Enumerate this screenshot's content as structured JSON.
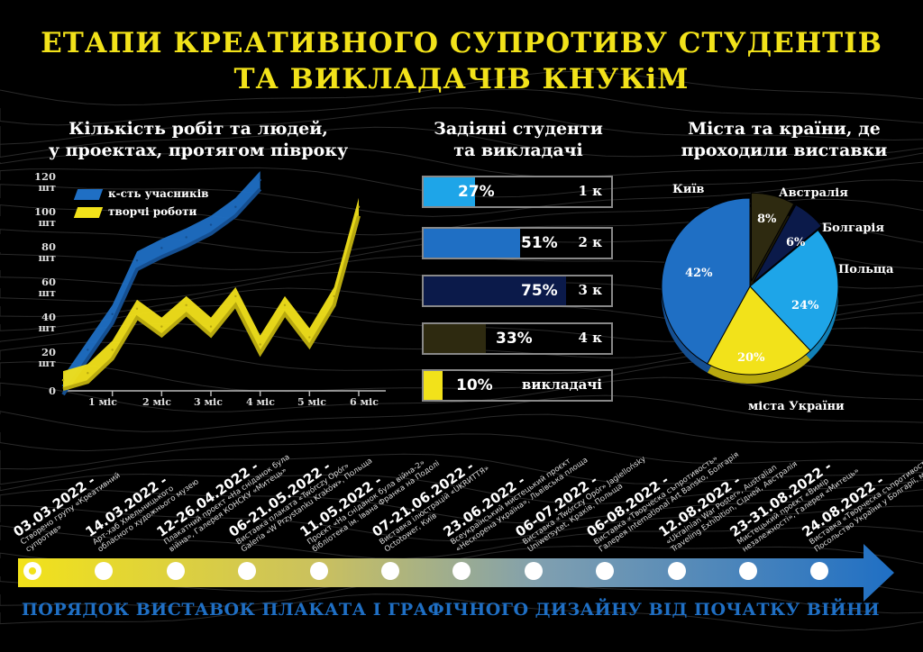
{
  "title_line1": "ЕТАПИ КРЕАТИВНОГО СУПРОТИВУ СТУДЕНТІВ",
  "title_line2": "ТА ВИКЛАДАЧІВ КНУКіМ",
  "line_chart_title": "Кількість робіт та людей, у проектах, протягом півроку",
  "line_chart_title_1": "Кількість робіт та людей,",
  "line_chart_title_2": "у проектах, протягом півроку",
  "bar_chart_title_1": "Задіяні студенти",
  "bar_chart_title_2": "та викладачі",
  "pie_chart_title_1": "Міста та країни, де",
  "pie_chart_title_2": "проходили виставки",
  "colors": {
    "blue": "#1f6fc4",
    "yellow": "#f2e21a",
    "lightblue": "#1ea5e8",
    "navy": "#0b1a4a",
    "olive": "#2e2a10"
  },
  "chart_data": [
    {
      "type": "line",
      "title": "Кількість робіт та людей, у проектах, протягом півроку",
      "y_tick_labels": [
        "120 шт",
        "100 шт",
        "80 шт",
        "60 шт",
        "40 шт",
        "20 шт",
        "0"
      ],
      "x_tick_labels": [
        "1 міс",
        "2 міс",
        "3 міс",
        "4 міс",
        "5 міс",
        "6 міс"
      ],
      "ylim": [
        0,
        120
      ],
      "series": [
        {
          "name": "к-сть учасників",
          "x": [
            0,
            0.5,
            1,
            1.5,
            2,
            2.5,
            3,
            3.5,
            4
          ],
          "values": [
            5,
            25,
            45,
            75,
            82,
            88,
            95,
            105,
            120
          ]
        },
        {
          "name": "творчі роботи",
          "x": [
            0,
            0.5,
            1,
            1.5,
            2,
            2.5,
            3,
            3.5,
            4,
            4.5,
            5,
            5.5,
            6
          ],
          "values": [
            8,
            12,
            25,
            48,
            38,
            50,
            38,
            55,
            28,
            50,
            32,
            55,
            105
          ]
        }
      ]
    },
    {
      "type": "bar",
      "title": "Задіяні студенти та викладачі",
      "categories": [
        "1 к",
        "2 к",
        "3 к",
        "4 к",
        "викладачі"
      ],
      "values": [
        27,
        51,
        75,
        33,
        10
      ],
      "labels": [
        "27%",
        "51%",
        "75%",
        "33%",
        "10%"
      ]
    },
    {
      "type": "pie",
      "title": "Міста та країни, де проходили виставки",
      "categories": [
        "Київ",
        "Австралія",
        "Болгарія",
        "Польща",
        "міста України"
      ],
      "values": [
        42,
        8,
        6,
        24,
        20
      ],
      "labels": [
        "42%",
        "8%",
        "6%",
        "24%",
        "20%"
      ]
    }
  ],
  "timeline": {
    "events": [
      {
        "date": "03.03.2022 -",
        "text1": "Створено групу «Креативний",
        "text2": "супротив»"
      },
      {
        "date": "14.03.2022 -",
        "text1": "Арт-хаб Хмельницького",
        "text2": "обласного художнього музею"
      },
      {
        "date": "12-26.04.2022 -",
        "text1": "Плакатний проєкт «На сніданок була",
        "text2": "війна», Галерея КОНСКУ «Митець»"
      },
      {
        "date": "06-21.05.2022 -",
        "text1": "Виставка плаката «Twórczy Opór»",
        "text2": "Galeria «W Przystanku Kraków», Польща"
      },
      {
        "date": "11.05.2022 -",
        "text1": "Проєкт «На сніданок була війна-2»",
        "text2": "бібліотека ім. Івана Франка на Подолі"
      },
      {
        "date": "07-21.06.2022 -",
        "text1": "Виставка ілюстрацій «UKRИТТЯ»",
        "text2": "Octotower, Київ"
      },
      {
        "date": "23.06.2022 -",
        "text1": "Всеукраїнський мистецький проєкт",
        "text2": "«Нескорена Україна», Львівська площа"
      },
      {
        "date": "06-07.2022 -",
        "text1": "Виставка «Twórczy Opór» Jagiellońsky",
        "text2": "Uniwersytet, Краків, Польща"
      },
      {
        "date": "06-08.2022 -",
        "text1": "Виставка «Творческа съпротивость»",
        "text2": "Галерея International Art Bansko, Болгарія"
      },
      {
        "date": "12.08.2022 -",
        "text1": "«Ukrainian War Poster», Australian",
        "text2": "Traveling Exhibition, Сідней, Австралія"
      },
      {
        "date": "23-31.08.2022 -",
        "text1": "Мистецький проєкт «Вимір",
        "text2": "незалежності», Галерея «Митець»"
      },
      {
        "date": "24.08.2022 -",
        "text1": "Виставка «Творческа съпротивост»",
        "text2": "Посольство України у Болгарії, м. Софія, Болгарія"
      }
    ]
  },
  "bottom_title": "ПОРЯДОК ВИСТАВОК ПЛАКАТА І ГРАФІЧНОГО ДИЗАЙНУ ВІД ПОЧАТКУ ВІЙНИ"
}
